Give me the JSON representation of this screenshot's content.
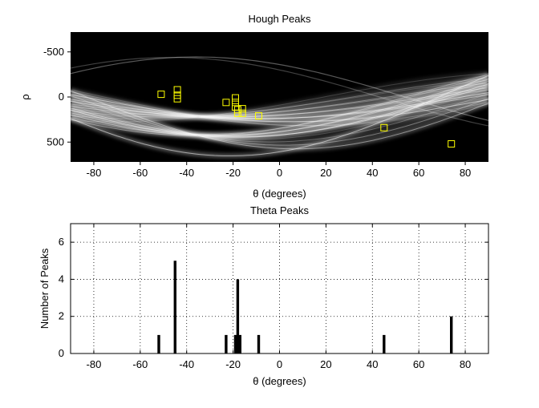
{
  "chart_data": [
    {
      "type": "heatmap",
      "title": "Hough Peaks",
      "xlabel": "θ (degrees)",
      "ylabel": "ρ",
      "xlim": [
        -90,
        90
      ],
      "ylim": [
        -720,
        720
      ],
      "y_reversed": true,
      "x_ticks": [
        -80,
        -60,
        -40,
        -20,
        0,
        20,
        40,
        60,
        80
      ],
      "y_ticks": [
        -500,
        0,
        500
      ],
      "colormap": "gray",
      "background_color": "#000000",
      "marker_color": "#ffff00",
      "grid": false,
      "peaks": [
        {
          "theta": -51,
          "rho": -30
        },
        {
          "theta": -44,
          "rho": -80
        },
        {
          "theta": -44,
          "rho": -20
        },
        {
          "theta": -44,
          "rho": 20
        },
        {
          "theta": -23,
          "rho": 60
        },
        {
          "theta": -19,
          "rho": 10
        },
        {
          "theta": -19,
          "rho": 60
        },
        {
          "theta": -19,
          "rho": 110
        },
        {
          "theta": -18,
          "rho": 140
        },
        {
          "theta": -18,
          "rho": 180
        },
        {
          "theta": -16,
          "rho": 180
        },
        {
          "theta": -16,
          "rho": 130
        },
        {
          "theta": -9,
          "rho": 210
        },
        {
          "theta": 45,
          "rho": 340
        },
        {
          "theta": 74,
          "rho": 520
        }
      ]
    },
    {
      "type": "bar",
      "title": "Theta Peaks",
      "xlabel": "θ (degrees)",
      "ylabel": "Number of Peaks",
      "xlim": [
        -90,
        90
      ],
      "ylim": [
        0,
        7
      ],
      "x_ticks": [
        -80,
        -60,
        -40,
        -20,
        0,
        20,
        40,
        60,
        80
      ],
      "y_ticks": [
        0,
        2,
        4,
        6
      ],
      "grid": true,
      "bar_color": "#000000",
      "x": [
        -52,
        -45,
        -23,
        -19,
        -18,
        -17,
        -9,
        45,
        74
      ],
      "values": [
        1,
        5,
        1,
        1,
        4,
        1,
        1,
        1,
        2
      ]
    }
  ]
}
